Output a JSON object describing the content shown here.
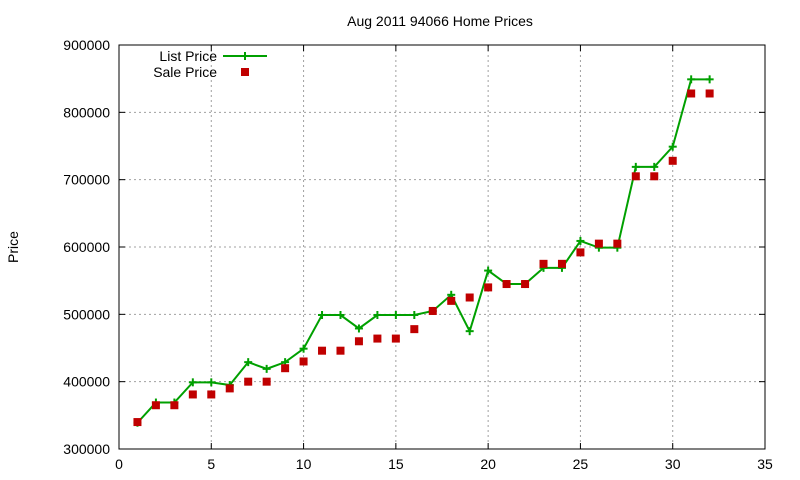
{
  "chart_data": {
    "type": "line",
    "title": "Aug 2011 94066 Home Prices",
    "xlabel": "",
    "ylabel": "Price",
    "xlim": [
      0,
      35
    ],
    "ylim": [
      300000,
      900000
    ],
    "xticks": [
      0,
      5,
      10,
      15,
      20,
      25,
      30,
      35
    ],
    "yticks": [
      300000,
      400000,
      500000,
      600000,
      700000,
      800000,
      900000
    ],
    "grid": true,
    "legend_position": "top-left",
    "series": [
      {
        "name": "List Price",
        "style": "lines+points",
        "marker": "plus",
        "color": "#00a000",
        "x": [
          1,
          2,
          3,
          4,
          5,
          6,
          7,
          8,
          9,
          10,
          11,
          12,
          13,
          14,
          15,
          16,
          17,
          18,
          19,
          20,
          21,
          22,
          23,
          24,
          25,
          26,
          27,
          28,
          29,
          30,
          31,
          32
        ],
        "y": [
          339000,
          369000,
          369000,
          399000,
          399000,
          395000,
          429000,
          419000,
          429000,
          449000,
          499000,
          499000,
          479000,
          499000,
          499000,
          499000,
          505000,
          529000,
          475000,
          565000,
          545000,
          545000,
          569000,
          569000,
          609000,
          599000,
          599000,
          719000,
          719000,
          749000,
          849000,
          849000
        ]
      },
      {
        "name": "Sale Price",
        "style": "points",
        "marker": "square",
        "color": "#c00000",
        "x": [
          1,
          2,
          3,
          4,
          5,
          6,
          7,
          8,
          9,
          10,
          11,
          12,
          13,
          14,
          15,
          16,
          17,
          18,
          19,
          20,
          21,
          22,
          23,
          24,
          25,
          26,
          27,
          28,
          29,
          30,
          31,
          32
        ],
        "y": [
          340000,
          365000,
          365000,
          381000,
          381000,
          390000,
          400000,
          400000,
          420000,
          430000,
          446000,
          446000,
          460000,
          464000,
          464000,
          478000,
          505000,
          520000,
          525000,
          540000,
          545000,
          545000,
          575000,
          575000,
          592000,
          605000,
          605000,
          705000,
          705000,
          728000,
          828000,
          828000
        ]
      }
    ]
  }
}
